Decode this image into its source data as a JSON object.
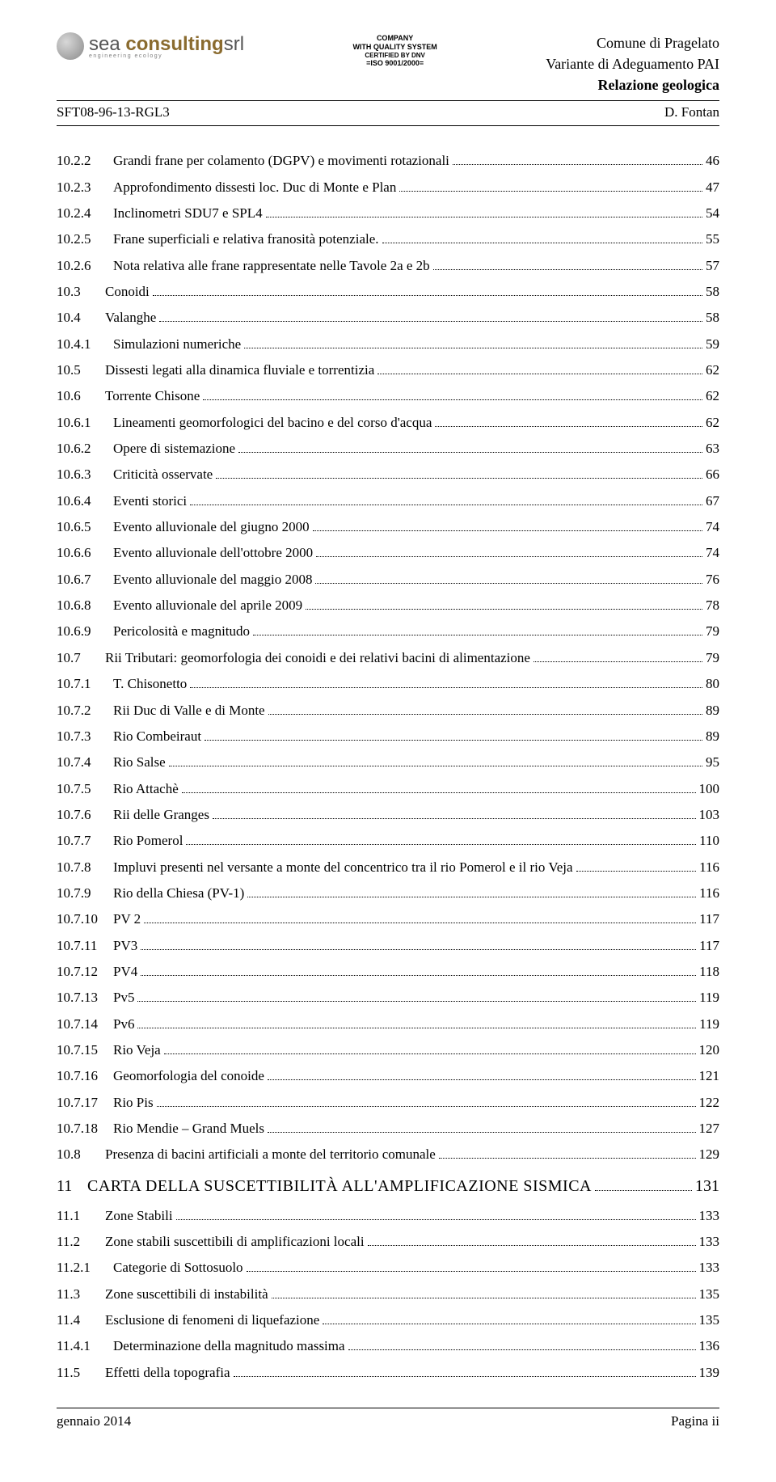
{
  "header": {
    "logo_main": "sea",
    "logo_accent": "consulting",
    "logo_suffix": "srl",
    "logo_sub": "engineering   ecology",
    "cert_l1": "COMPANY",
    "cert_l2": "WITH QUALITY SYSTEM",
    "cert_l3": "CERTIFIED BY DNV",
    "cert_l4": "=ISO 9001/2000=",
    "right_l1": "Comune di Pragelato",
    "right_l2": "Variante di Adeguamento PAI",
    "right_l3": "Relazione geologica",
    "docnum": "SFT08-96-13-RGL3",
    "author": "D. Fontan"
  },
  "toc": [
    {
      "lvl": "3",
      "num": "10.2.2",
      "title": "Grandi frane per colamento (DGPV) e movimenti rotazionali",
      "page": "46"
    },
    {
      "lvl": "3",
      "num": "10.2.3",
      "title": "Approfondimento dissesti loc. Duc di Monte e Plan",
      "page": "47"
    },
    {
      "lvl": "3",
      "num": "10.2.4",
      "title": "Inclinometri SDU7 e SPL4",
      "page": "54"
    },
    {
      "lvl": "3",
      "num": "10.2.5",
      "title": "Frane superficiali e relativa franosità potenziale.",
      "page": "55"
    },
    {
      "lvl": "3",
      "num": "10.2.6",
      "title": "Nota relativa alle frane rappresentate nelle Tavole 2a e 2b",
      "page": "57"
    },
    {
      "lvl": "2",
      "num": "10.3",
      "title": "Conoidi",
      "page": "58"
    },
    {
      "lvl": "2",
      "num": "10.4",
      "title": "Valanghe",
      "page": "58"
    },
    {
      "lvl": "3",
      "num": "10.4.1",
      "title": "Simulazioni numeriche",
      "page": "59"
    },
    {
      "lvl": "2",
      "num": "10.5",
      "title": "Dissesti legati alla dinamica fluviale e torrentizia",
      "page": "62"
    },
    {
      "lvl": "2",
      "num": "10.6",
      "title": "Torrente Chisone",
      "page": "62"
    },
    {
      "lvl": "3",
      "num": "10.6.1",
      "title": "Lineamenti geomorfologici del bacino e del corso d'acqua",
      "page": "62"
    },
    {
      "lvl": "3",
      "num": "10.6.2",
      "title": "Opere di sistemazione",
      "page": "63"
    },
    {
      "lvl": "3",
      "num": "10.6.3",
      "title": "Criticità osservate",
      "page": "66"
    },
    {
      "lvl": "3",
      "num": "10.6.4",
      "title": "Eventi storici",
      "page": "67"
    },
    {
      "lvl": "3",
      "num": "10.6.5",
      "title": "Evento alluvionale del giugno 2000",
      "page": "74"
    },
    {
      "lvl": "3",
      "num": "10.6.6",
      "title": "Evento alluvionale dell'ottobre 2000",
      "page": "74"
    },
    {
      "lvl": "3",
      "num": "10.6.7",
      "title": "Evento alluvionale del maggio 2008",
      "page": "76"
    },
    {
      "lvl": "3",
      "num": "10.6.8",
      "title": "Evento alluvionale del aprile 2009",
      "page": "78"
    },
    {
      "lvl": "3",
      "num": "10.6.9",
      "title": "Pericolosità e magnitudo",
      "page": "79"
    },
    {
      "lvl": "2",
      "num": "10.7",
      "title": "Rii Tributari: geomorfologia dei conoidi e dei relativi bacini di alimentazione",
      "page": "79"
    },
    {
      "lvl": "3",
      "num": "10.7.1",
      "title": "T. Chisonetto",
      "page": "80"
    },
    {
      "lvl": "3",
      "num": "10.7.2",
      "title": "Rii Duc di Valle e di Monte",
      "page": "89"
    },
    {
      "lvl": "3",
      "num": "10.7.3",
      "title": "Rio Combeiraut",
      "page": "89"
    },
    {
      "lvl": "3",
      "num": "10.7.4",
      "title": "Rio Salse",
      "page": "95"
    },
    {
      "lvl": "3",
      "num": "10.7.5",
      "title": "Rio Attachè",
      "page": "100"
    },
    {
      "lvl": "3",
      "num": "10.7.6",
      "title": "Rii delle Granges",
      "page": "103"
    },
    {
      "lvl": "3",
      "num": "10.7.7",
      "title": "Rio Pomerol",
      "page": "110"
    },
    {
      "lvl": "3",
      "num": "10.7.8",
      "title": "Impluvi presenti nel versante a monte del concentrico tra il rio Pomerol e il rio Veja",
      "page": "116"
    },
    {
      "lvl": "3",
      "num": "10.7.9",
      "title": "Rio della Chiesa (PV-1)",
      "page": "116"
    },
    {
      "lvl": "3",
      "num": "10.7.10",
      "title": "PV 2",
      "page": "117"
    },
    {
      "lvl": "3",
      "num": "10.7.11",
      "title": "PV3",
      "page": "117"
    },
    {
      "lvl": "3",
      "num": "10.7.12",
      "title": "PV4",
      "page": "118"
    },
    {
      "lvl": "3",
      "num": "10.7.13",
      "title": "Pv5",
      "page": "119"
    },
    {
      "lvl": "3",
      "num": "10.7.14",
      "title": "Pv6",
      "page": "119"
    },
    {
      "lvl": "3",
      "num": "10.7.15",
      "title": "Rio Veja",
      "page": "120"
    },
    {
      "lvl": "3",
      "num": "10.7.16",
      "title": "Geomorfologia del conoide",
      "page": "121"
    },
    {
      "lvl": "3",
      "num": "10.7.17",
      "title": "Rio Pis",
      "page": "122"
    },
    {
      "lvl": "3",
      "num": "10.7.18",
      "title": "Rio Mendie – Grand Muels",
      "page": "127"
    },
    {
      "lvl": "2",
      "num": "10.8",
      "title": "Presenza di bacini artificiali a monte del territorio comunale",
      "page": "129"
    },
    {
      "lvl": "h",
      "num": "11",
      "title": "CARTA DELLA SUSCETTIBILITÀ ALL'AMPLIFICAZIONE SISMICA",
      "page": "131"
    },
    {
      "lvl": "2",
      "num": "11.1",
      "title": "Zone Stabili",
      "page": "133"
    },
    {
      "lvl": "2",
      "num": "11.2",
      "title": "Zone stabili suscettibili di amplificazioni locali",
      "page": "133"
    },
    {
      "lvl": "3",
      "num": "11.2.1",
      "title": "Categorie di Sottosuolo",
      "page": "133"
    },
    {
      "lvl": "2",
      "num": "11.3",
      "title": "Zone suscettibili di instabilità",
      "page": "135"
    },
    {
      "lvl": "2",
      "num": "11.4",
      "title": "Esclusione di fenomeni di liquefazione",
      "page": "135"
    },
    {
      "lvl": "3",
      "num": "11.4.1",
      "title": "Determinazione della magnitudo massima",
      "page": "136"
    },
    {
      "lvl": "2",
      "num": "11.5",
      "title": "Effetti della topografia",
      "page": "139"
    }
  ],
  "footer": {
    "left": "gennaio 2014",
    "right": "Pagina ii"
  }
}
